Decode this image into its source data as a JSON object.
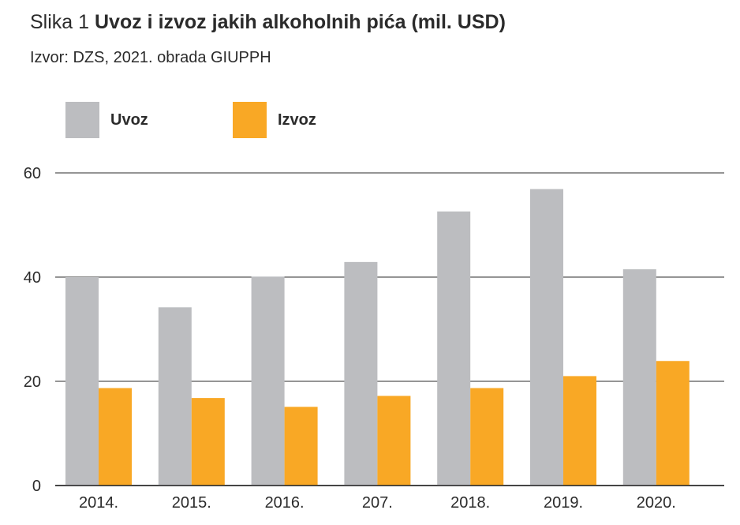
{
  "header": {
    "title_prefix": "Slika 1",
    "title": "Uvoz i izvoz jakih alkoholnih pića (mil. USD)",
    "source": "Izvor: DZS, 2021. obrada GIUPPH"
  },
  "colors": {
    "uvoz": "#bcbdc0",
    "izvoz": "#f9a825",
    "gridline": "#2b2b2b",
    "text": "#2b2b2b"
  },
  "chart_data": {
    "type": "bar",
    "title": "Uvoz i izvoz jakih alkoholnih pića (mil. USD)",
    "categories": [
      "2014.",
      "2015.",
      "2016.",
      "207.",
      "2018.",
      "2019.",
      "2020."
    ],
    "series": [
      {
        "name": "Uvoz",
        "values": [
          40,
          34.2,
          40.1,
          42.9,
          52.6,
          56.9,
          41.5
        ]
      },
      {
        "name": "Izvoz",
        "values": [
          18.7,
          16.8,
          15.1,
          17.2,
          18.7,
          21,
          23.9
        ]
      }
    ],
    "ylim": [
      0,
      60
    ],
    "yticks": [
      0,
      20,
      40,
      60
    ],
    "grid": true,
    "legend": "top-left"
  }
}
